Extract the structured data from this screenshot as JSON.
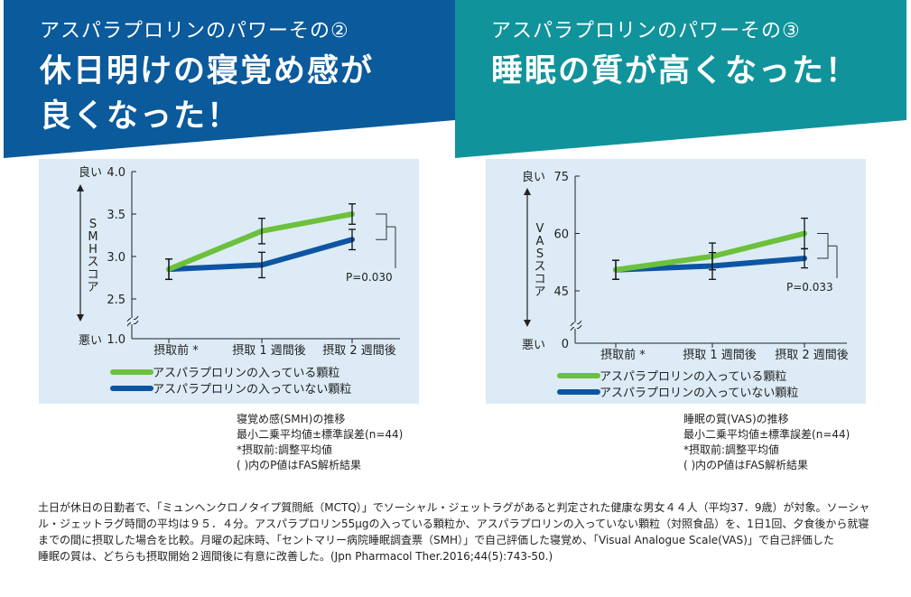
{
  "panels": [
    {
      "subtitle": "アスパラプロリンのパワーその②",
      "title_lines": [
        "休日明けの寝覚め感が",
        "良くなった！"
      ],
      "header_color": "#0a5a9c",
      "notes": [
        "寝覚め感(SMH)の推移",
        "最小二乗平均値±標準誤差(n=44)",
        "*摂取前:調整平均値",
        "( )内のP値はFAS解析結果"
      ]
    },
    {
      "subtitle": "アスパラプロリンのパワーその③",
      "title_lines": [
        "睡眠の質が高くなった！"
      ],
      "header_color": "#11939b",
      "notes": [
        "睡眠の質(VAS)の推移",
        "最小二乗平均値±標準誤差(n=44)",
        "*摂取前:調整平均値",
        "( )内のP値はFAS解析結果"
      ]
    }
  ],
  "chart_data": [
    {
      "type": "line",
      "ylabel": "SMHスコア",
      "y_top_label": "良い",
      "y_bottom_label": "悪い",
      "ylim": [
        1.0,
        4.0
      ],
      "y_axis_break": true,
      "yticks": [
        "1.0",
        "2.5",
        "3.0",
        "3.5",
        "4.0"
      ],
      "categories": [
        "摂取前 *",
        "摂取 1 週間後",
        "摂取 2 週間後"
      ],
      "series": [
        {
          "name": "アスパラプロリンの入っている顆粒",
          "color": "#6cc13c",
          "values": [
            2.85,
            3.3,
            3.5
          ],
          "err": [
            0.12,
            0.15,
            0.12
          ]
        },
        {
          "name": "アスパラプロリンの入っていない顆粒",
          "color": "#0d55a3",
          "values": [
            2.85,
            2.9,
            3.2
          ],
          "err": [
            0.12,
            0.15,
            0.12
          ]
        }
      ],
      "annotation": "P=0.030",
      "grid": false,
      "legend": "bottom"
    },
    {
      "type": "line",
      "ylabel": "VASスコア",
      "y_top_label": "良い",
      "y_bottom_label": "悪い",
      "ylim": [
        0,
        75
      ],
      "y_axis_break": true,
      "yticks": [
        "0",
        "45",
        "60",
        "75"
      ],
      "categories": [
        "摂取前 *",
        "摂取 1 週間後",
        "摂取 2 週間後"
      ],
      "series": [
        {
          "name": "アスパラプロリンの入っている顆粒",
          "color": "#6cc13c",
          "values": [
            50.5,
            54,
            60
          ],
          "err": [
            2.5,
            3.5,
            4
          ]
        },
        {
          "name": "アスパラプロリンの入っていない顆粒",
          "color": "#0d55a3",
          "values": [
            50.5,
            51.5,
            53.5
          ],
          "err": [
            2.5,
            3.5,
            2.5
          ]
        }
      ],
      "annotation": "P=0.033",
      "grid": false,
      "legend": "bottom"
    }
  ],
  "footnote_lines": [
    "土日が休日の日勤者で、「ミュンヘンクロノタイプ質問紙（MCTQ）」でソーシャル・ジェットラグがあると判定された健康な男女４４人（平均37．9歳）が対象。ソーシャ",
    "ル・ジェットラグ時間の平均は９５．４分。アスパラプロリン55μgの入っている顆粒か、アスパラプロリンの入っていない顆粒（対照食品）を、1日1回、夕食後から就寝",
    "までの間に摂取した場合を比較。月曜の起床時、「セントマリー病院睡眠調査票（SMH）」で自己評価した寝覚め、「Visual Analogue Scale(VAS)」で自己評価した",
    "睡眠の質は、どちらも摂取開始２週間後に有意に改善した。(Jpn Pharmacol Ther.2016;44(5):743-50.)"
  ]
}
